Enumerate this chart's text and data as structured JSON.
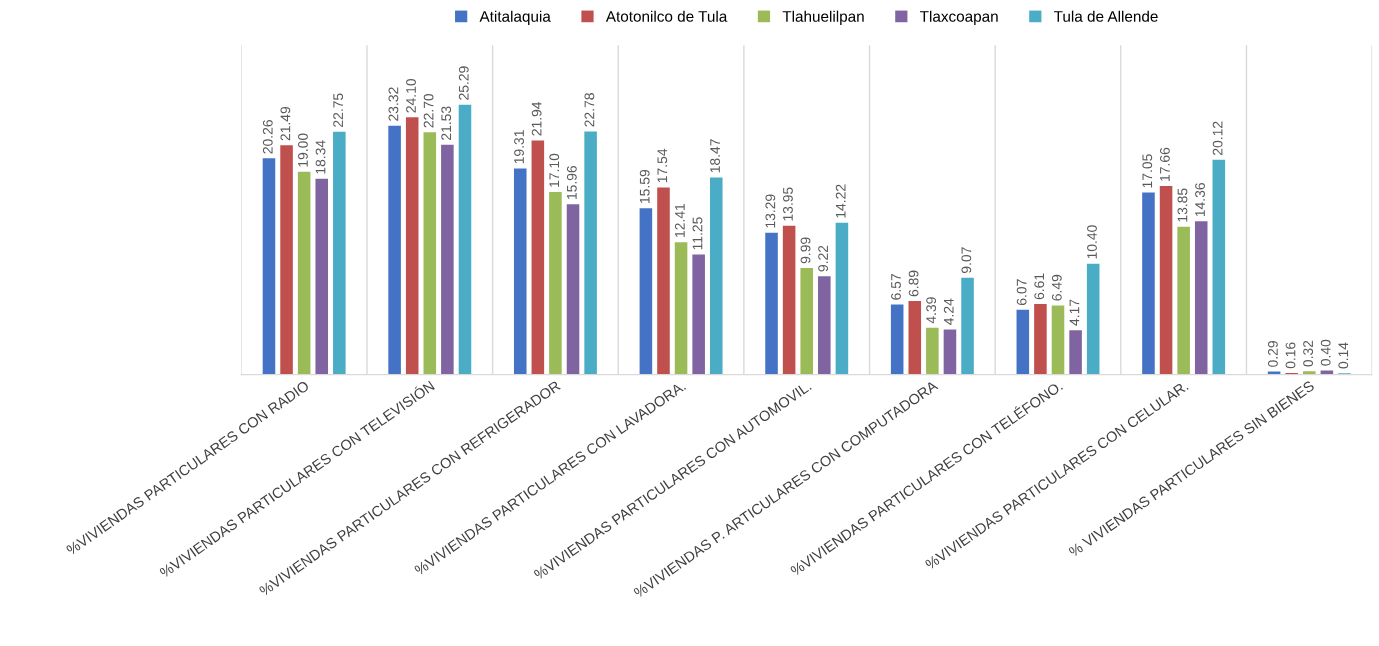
{
  "chart_data": {
    "type": "bar",
    "categories": [
      "%VIVIENDAS PARTICULARES CON RADIO",
      "%VIVIENDAS PARTICULARES CON TELEVISIÓN",
      "%VIVIENDAS PARTICULARES CON REFRIGERADOR",
      "%VIVIENDAS PARTICULARES CON LAVADORA.",
      "%VIVIENDAS PARTICULARES CON AUTOMOVIL.",
      "%VIVIENDAS P. ARTICULARES CON COMPUTADORA",
      "%VIVIENDAS PARTICULARES CON TELÉFONO.",
      "%VIVIENDAS PARTICULARES CON CELULAR.",
      "% VIVIENDAS PARTICULARES SIN BIENES"
    ],
    "series": [
      {
        "name": "Atitalaquia",
        "color": "#4472c4",
        "values": [
          20.26,
          23.32,
          19.31,
          15.59,
          13.29,
          6.57,
          6.07,
          17.05,
          0.29
        ],
        "value_labels": [
          "20.26",
          "23.32",
          "19.31",
          "15.59",
          "13.29",
          "6.57",
          "6.07",
          "17.05",
          "0.29"
        ]
      },
      {
        "name": "Atotonilco de Tula",
        "color": "#c0504d",
        "values": [
          21.49,
          24.1,
          21.94,
          17.54,
          13.95,
          6.89,
          6.61,
          17.66,
          0.16
        ],
        "value_labels": [
          "21.49",
          "24.10",
          "21.94",
          "17.54",
          "13.95",
          "6.89",
          "6.61",
          "17.66",
          "0.16"
        ]
      },
      {
        "name": "Tlahuelilpan",
        "color": "#9bbb59",
        "values": [
          19.0,
          22.7,
          17.1,
          12.41,
          9.99,
          4.39,
          6.49,
          13.85,
          0.32
        ],
        "value_labels": [
          "19.00",
          "22.70",
          "17.10",
          "12.41",
          "9.99",
          "4.39",
          "6.49",
          "13.85",
          "0.32"
        ]
      },
      {
        "name": "Tlaxcoapan",
        "color": "#8064a2",
        "values": [
          18.34,
          21.53,
          15.96,
          11.25,
          9.22,
          4.24,
          4.17,
          14.36,
          0.4
        ],
        "value_labels": [
          "18.34",
          "21.53",
          "15.96",
          "11.25",
          "9.22",
          "4.24",
          "4.17",
          "14.36",
          "0.40"
        ]
      },
      {
        "name": "Tula de Allende",
        "color": "#4bacc6",
        "values": [
          22.75,
          25.29,
          22.78,
          18.47,
          14.22,
          9.07,
          10.4,
          20.12,
          0.14
        ],
        "value_labels": [
          "22.75",
          "25.29",
          "22.78",
          "18.47",
          "14.22",
          "9.07",
          "10.40",
          "20.12",
          "0.14"
        ]
      }
    ],
    "legend": "top",
    "grid": "x",
    "tick_labels": "x"
  }
}
